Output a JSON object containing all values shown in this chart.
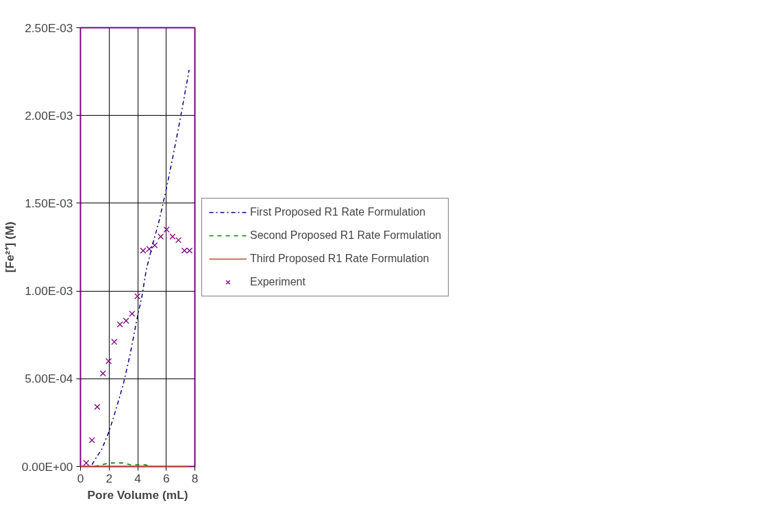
{
  "chart_data": {
    "type": "line",
    "xlabel": "Pore Volume (mL)",
    "ylabel": "[Fe²⁺] (M)",
    "xlim": [
      0,
      8
    ],
    "xticks": [
      0,
      2,
      4,
      6,
      8
    ],
    "ylim": [
      0,
      0.0025
    ],
    "yticks": [
      {
        "value": 0,
        "label": "0.00E+00"
      },
      {
        "value": 0.0005,
        "label": "5.00E-04"
      },
      {
        "value": 0.001,
        "label": "1.00E-03"
      },
      {
        "value": 0.0015,
        "label": "1.50E-03"
      },
      {
        "value": 0.002,
        "label": "2.00E-03"
      },
      {
        "value": 0.0025,
        "label": "2.50E-03"
      }
    ],
    "grid": true,
    "legend": "right",
    "series": [
      {
        "name": "First Proposed R1 Rate Formulation",
        "line_style": "dashdot",
        "color": "#000080",
        "x": [
          0.8,
          1.1,
          1.5,
          2,
          2.5,
          3,
          3.5,
          4,
          4.3,
          4.6,
          5,
          5.5,
          6,
          6.5,
          7,
          7.6
        ],
        "values": [
          1e-05,
          5e-05,
          0.0001,
          0.0002,
          0.00033,
          0.00047,
          0.00065,
          0.00086,
          0.00097,
          0.00112,
          0.00125,
          0.0014,
          0.00158,
          0.00178,
          0.00199,
          0.00226
        ]
      },
      {
        "name": "Second Proposed R1 Rate Formulation",
        "line_style": "dashed",
        "color": "#008000",
        "x": [
          1,
          1.5,
          2,
          2.5,
          3,
          3.5,
          4,
          4.5,
          5
        ],
        "values": [
          0,
          1e-05,
          2e-05,
          2e-05,
          2e-05,
          1e-05,
          1e-05,
          1e-05,
          0
        ]
      },
      {
        "name": "Third Proposed R1 Rate Formulation",
        "line_style": "solid",
        "color": "#b5472a",
        "x": [
          0,
          7.6
        ],
        "values": [
          0,
          0
        ]
      },
      {
        "name": "Experiment",
        "type": "scatter",
        "marker": "cross",
        "color": "#800080",
        "x": [
          0.4,
          0.8,
          1.17,
          1.57,
          1.97,
          2.36,
          2.76,
          3.19,
          3.61,
          3.98,
          4.38,
          4.81,
          5.19,
          5.61,
          6.02,
          6.44,
          6.85,
          7.27,
          7.63
        ],
        "values": [
          2e-05,
          0.00015,
          0.00034,
          0.00053,
          0.0006,
          0.00071,
          0.00081,
          0.00083,
          0.00087,
          0.00097,
          0.00123,
          0.00124,
          0.00126,
          0.00131,
          0.00135,
          0.00131,
          0.00129,
          0.00123,
          0.00123
        ]
      }
    ]
  }
}
